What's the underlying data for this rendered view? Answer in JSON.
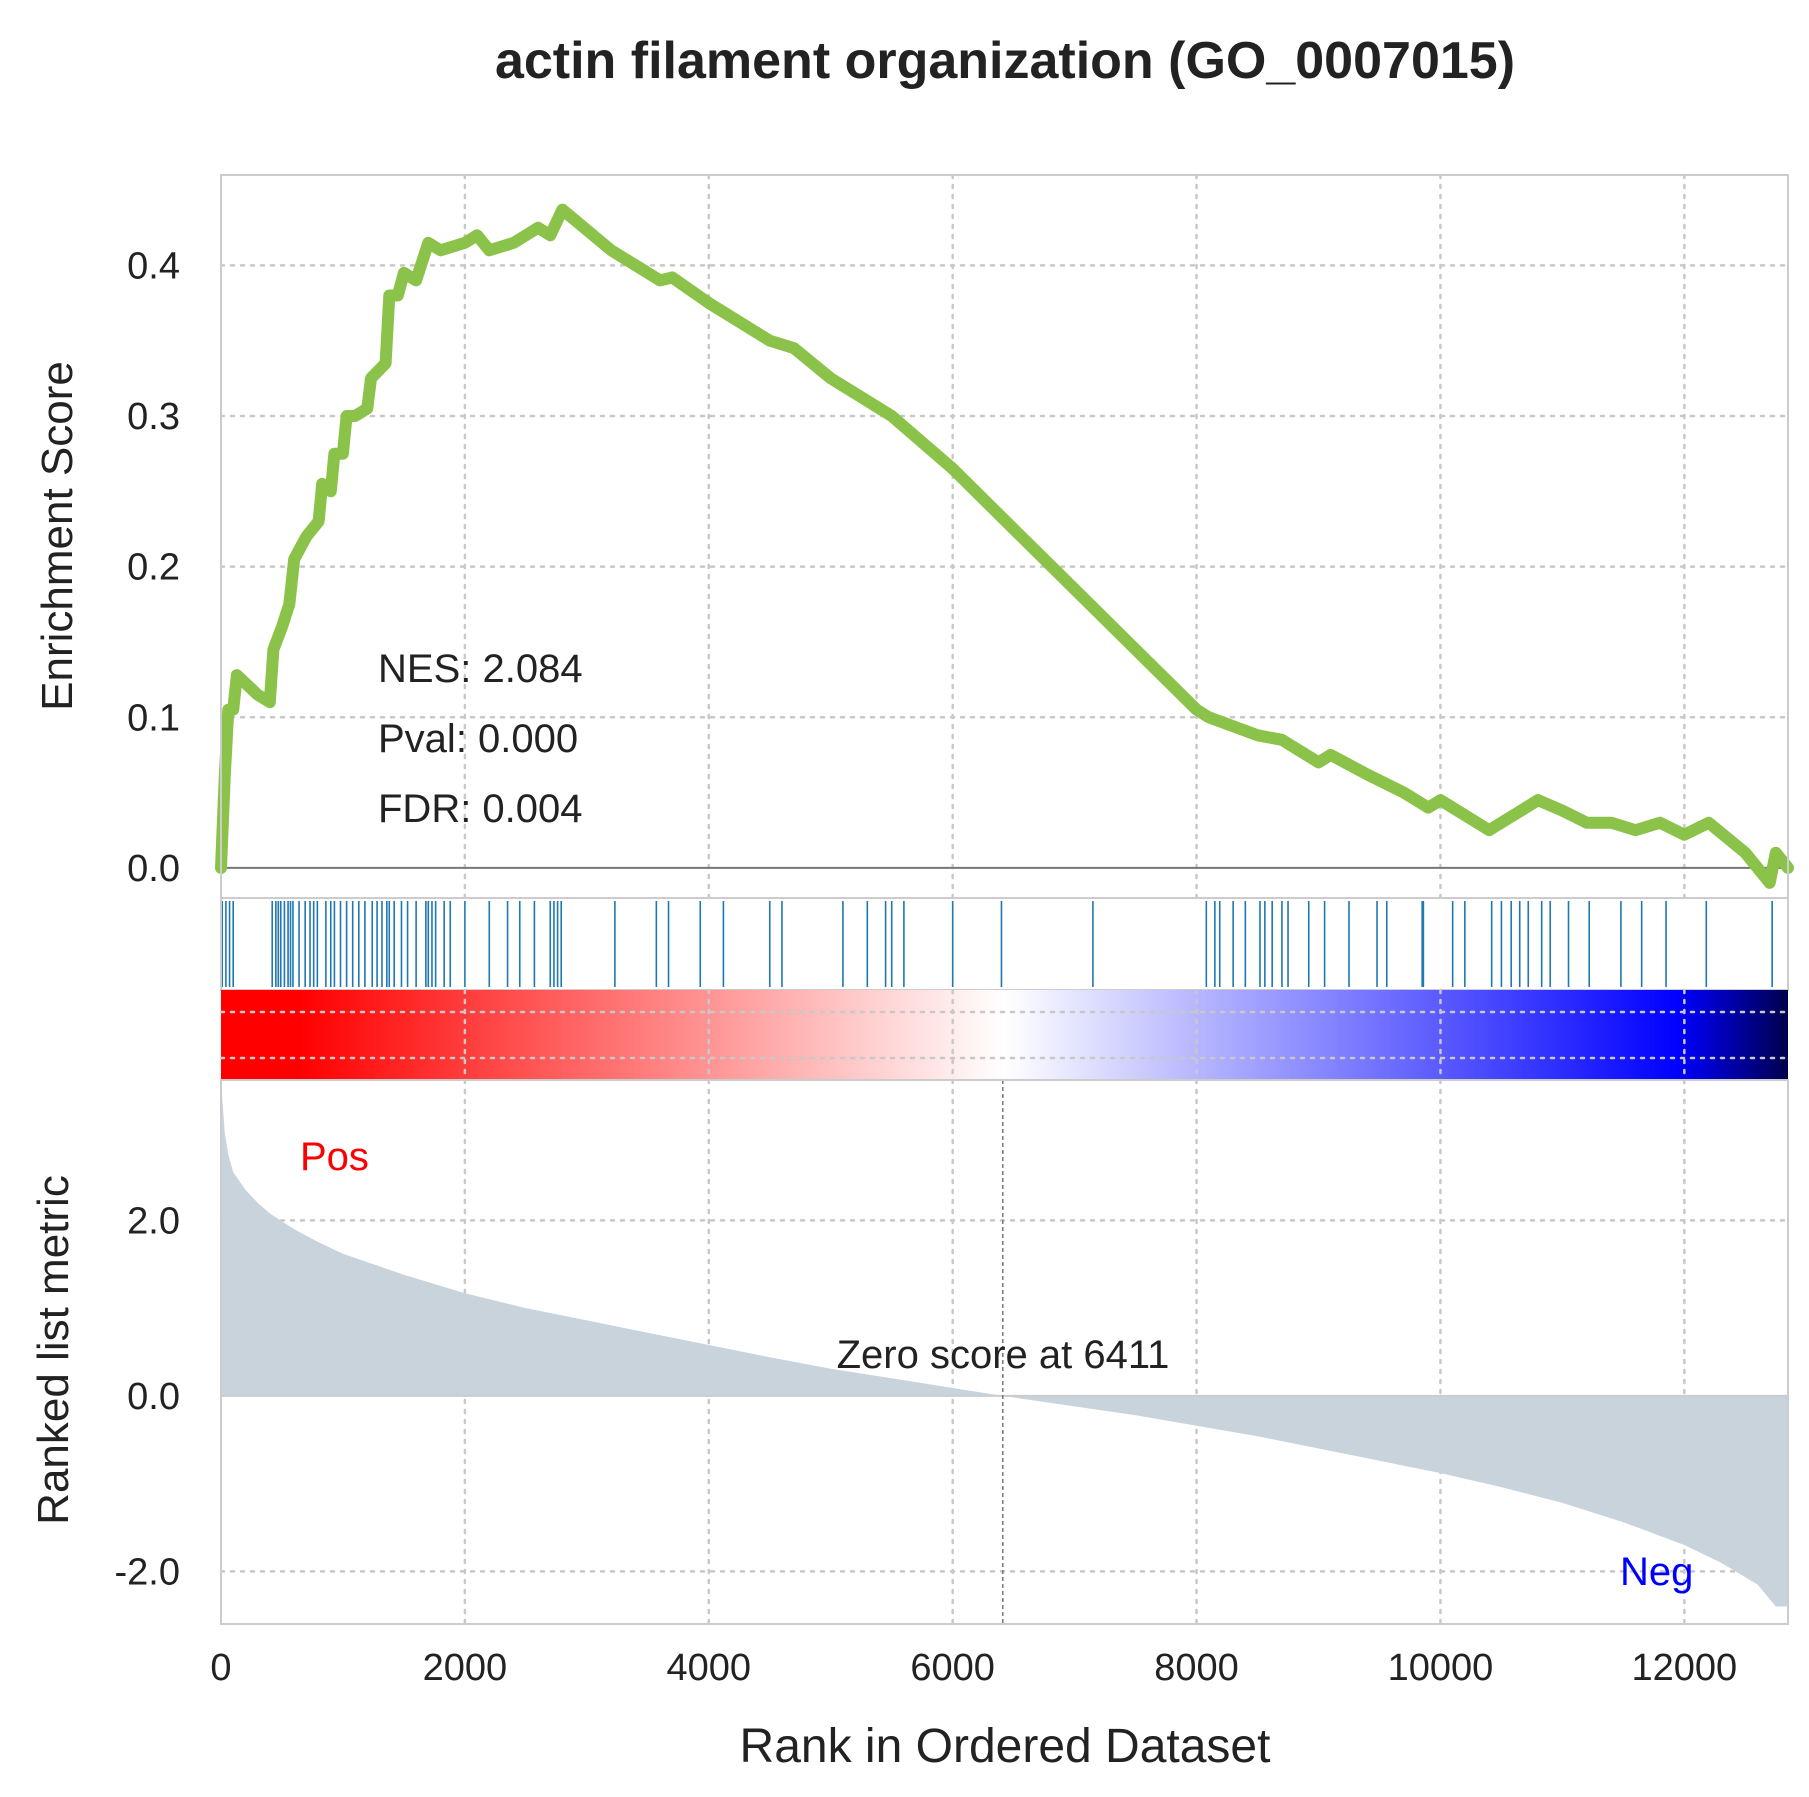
{
  "chart_data": {
    "type": "line",
    "title": "actin filament organization (GO_0007015)",
    "xlabel": "Rank in Ordered Dataset",
    "xlim": [
      0,
      12850
    ],
    "x_ticks": [
      0,
      2000,
      4000,
      6000,
      8000,
      10000,
      12000
    ],
    "grid": true,
    "enrichment_panel": {
      "ylabel": "Enrichment Score",
      "ylim": [
        -0.02,
        0.46
      ],
      "y_ticks": [
        "0.0",
        "0.1",
        "0.2",
        "0.3",
        "0.4"
      ],
      "y_tick_values": [
        0.0,
        0.1,
        0.2,
        0.3,
        0.4
      ],
      "line_color": "#8bc34a",
      "running_es": [
        [
          0,
          0.0
        ],
        [
          30,
          0.06
        ],
        [
          60,
          0.105
        ],
        [
          100,
          0.105
        ],
        [
          130,
          0.128
        ],
        [
          300,
          0.115
        ],
        [
          400,
          0.11
        ],
        [
          430,
          0.145
        ],
        [
          500,
          0.16
        ],
        [
          560,
          0.175
        ],
        [
          600,
          0.205
        ],
        [
          700,
          0.22
        ],
        [
          800,
          0.23
        ],
        [
          830,
          0.255
        ],
        [
          900,
          0.25
        ],
        [
          930,
          0.275
        ],
        [
          1000,
          0.275
        ],
        [
          1030,
          0.3
        ],
        [
          1100,
          0.3
        ],
        [
          1200,
          0.305
        ],
        [
          1230,
          0.325
        ],
        [
          1350,
          0.335
        ],
        [
          1380,
          0.38
        ],
        [
          1450,
          0.38
        ],
        [
          1500,
          0.395
        ],
        [
          1600,
          0.39
        ],
        [
          1700,
          0.415
        ],
        [
          1800,
          0.41
        ],
        [
          2000,
          0.415
        ],
        [
          2100,
          0.42
        ],
        [
          2200,
          0.41
        ],
        [
          2400,
          0.415
        ],
        [
          2500,
          0.42
        ],
        [
          2600,
          0.425
        ],
        [
          2700,
          0.42
        ],
        [
          2800,
          0.437
        ],
        [
          3200,
          0.41
        ],
        [
          3600,
          0.39
        ],
        [
          3700,
          0.392
        ],
        [
          4000,
          0.375
        ],
        [
          4500,
          0.35
        ],
        [
          4700,
          0.345
        ],
        [
          5000,
          0.325
        ],
        [
          5500,
          0.3
        ],
        [
          6000,
          0.265
        ],
        [
          6500,
          0.225
        ],
        [
          7000,
          0.185
        ],
        [
          7500,
          0.145
        ],
        [
          8000,
          0.105
        ],
        [
          8100,
          0.1
        ],
        [
          8500,
          0.088
        ],
        [
          8700,
          0.085
        ],
        [
          9000,
          0.07
        ],
        [
          9100,
          0.075
        ],
        [
          9400,
          0.062
        ],
        [
          9700,
          0.05
        ],
        [
          9900,
          0.04
        ],
        [
          10000,
          0.045
        ],
        [
          10400,
          0.025
        ],
        [
          10600,
          0.035
        ],
        [
          10800,
          0.045
        ],
        [
          11000,
          0.038
        ],
        [
          11200,
          0.03
        ],
        [
          11400,
          0.03
        ],
        [
          11600,
          0.025
        ],
        [
          11800,
          0.03
        ],
        [
          12000,
          0.022
        ],
        [
          12200,
          0.03
        ],
        [
          12500,
          0.01
        ],
        [
          12700,
          -0.01
        ],
        [
          12750,
          0.01
        ],
        [
          12850,
          0.0
        ]
      ]
    },
    "hits": [
      10,
      40,
      70,
      100,
      420,
      450,
      470,
      490,
      520,
      550,
      570,
      590,
      640,
      690,
      730,
      760,
      790,
      860,
      900,
      930,
      980,
      1030,
      1080,
      1130,
      1180,
      1240,
      1280,
      1320,
      1360,
      1380,
      1420,
      1480,
      1530,
      1600,
      1680,
      1700,
      1730,
      1760,
      1830,
      1880,
      2000,
      2200,
      2350,
      2450,
      2570,
      2700,
      2730,
      2760,
      2790,
      3230,
      3570,
      3670,
      3930,
      4120,
      4500,
      4600,
      5100,
      5300,
      5450,
      5500,
      5600,
      6000,
      6400,
      7150,
      8080,
      8150,
      8190,
      8300,
      8400,
      8520,
      8560,
      8620,
      8700,
      8750,
      8920,
      9050,
      9250,
      9480,
      9560,
      9850,
      9860,
      10100,
      10200,
      10420,
      10500,
      10580,
      10650,
      10720,
      10830,
      10900,
      11050,
      11220,
      11480,
      11650,
      11850,
      12180,
      12720
    ],
    "hit_color": "#1f77b4",
    "ranked_panel": {
      "ylabel": "Ranked list metric",
      "ylim": [
        -2.6,
        3.6
      ],
      "y_ticks": [
        "-2.0",
        "0.0",
        "2.0"
      ],
      "y_tick_values": [
        -2.0,
        0.0,
        2.0
      ],
      "fill_color": "#c8d3dc",
      "metric": [
        [
          0,
          3.6
        ],
        [
          30,
          3.0
        ],
        [
          60,
          2.75
        ],
        [
          100,
          2.55
        ],
        [
          200,
          2.35
        ],
        [
          300,
          2.2
        ],
        [
          400,
          2.08
        ],
        [
          600,
          1.9
        ],
        [
          800,
          1.75
        ],
        [
          1000,
          1.62
        ],
        [
          1500,
          1.38
        ],
        [
          2000,
          1.17
        ],
        [
          2500,
          1.0
        ],
        [
          3000,
          0.86
        ],
        [
          3500,
          0.72
        ],
        [
          4000,
          0.58
        ],
        [
          4500,
          0.44
        ],
        [
          5000,
          0.31
        ],
        [
          5500,
          0.2
        ],
        [
          6000,
          0.09
        ],
        [
          6411,
          0.0
        ],
        [
          7000,
          -0.12
        ],
        [
          7500,
          -0.22
        ],
        [
          8000,
          -0.34
        ],
        [
          8500,
          -0.46
        ],
        [
          9000,
          -0.6
        ],
        [
          9500,
          -0.74
        ],
        [
          10000,
          -0.88
        ],
        [
          10500,
          -1.04
        ],
        [
          11000,
          -1.22
        ],
        [
          11500,
          -1.44
        ],
        [
          12000,
          -1.7
        ],
        [
          12300,
          -1.9
        ],
        [
          12600,
          -2.15
        ],
        [
          12750,
          -2.4
        ],
        [
          12850,
          -2.4
        ]
      ],
      "zero_cross": 6411,
      "zero_label": "Zero score at 6411",
      "pos_label": "Pos",
      "neg_label": "Neg",
      "pos_color": "#ff0000",
      "neg_color": "#0000ff"
    },
    "stats": {
      "nes": "NES: 2.084",
      "pval": "Pval: 0.000",
      "fdr": "FDR: 0.004"
    },
    "colorbar_colors": [
      "#ff0000",
      "#ffffff",
      "#0000ff",
      "#00004d"
    ]
  }
}
